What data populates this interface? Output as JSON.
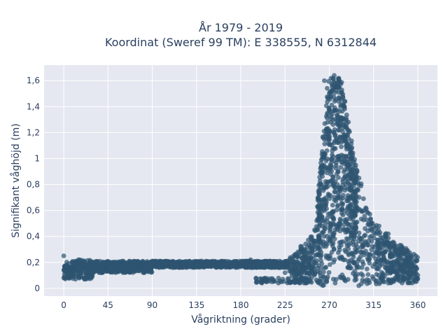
{
  "chart_data": {
    "type": "scatter",
    "title_lines": [
      "År 1979 - 2019",
      "Koordinat (Sweref 99 TM): E 338555, N 6312844"
    ],
    "xlabel": "Vågriktning (grader)",
    "ylabel": "Signifikant våghöjd (m)",
    "xlim": [
      -20,
      380
    ],
    "ylim": [
      -0.06,
      1.72
    ],
    "x_ticks": [
      0,
      45,
      90,
      135,
      180,
      225,
      270,
      315,
      360
    ],
    "y_ticks": [
      0,
      0.2,
      0.4,
      0.6,
      0.8,
      1,
      1.2,
      1.4,
      1.6
    ],
    "y_tick_labels": [
      "0",
      "0,2",
      "0,4",
      "0,6",
      "0,8",
      "1",
      "1,2",
      "1,4",
      "1,6"
    ],
    "grid": true,
    "colors": {
      "marker": "#2e5470",
      "plot_bg": "#e5e8f0",
      "grid": "#ffffff",
      "text": "#2a3f5f"
    },
    "marker_opacity": 0.7,
    "representative_points": [
      [
        0,
        0.08
      ],
      [
        0,
        0.25
      ],
      [
        10,
        0.1
      ],
      [
        15,
        0.22
      ],
      [
        30,
        0.14
      ],
      [
        45,
        0.18
      ],
      [
        60,
        0.2
      ],
      [
        75,
        0.17
      ],
      [
        90,
        0.21
      ],
      [
        100,
        0.2
      ],
      [
        120,
        0.19
      ],
      [
        140,
        0.21
      ],
      [
        150,
        0.17
      ],
      [
        170,
        0.2
      ],
      [
        190,
        0.22
      ],
      [
        200,
        0.05
      ],
      [
        210,
        0.21
      ],
      [
        225,
        0.12
      ],
      [
        235,
        0.25
      ],
      [
        245,
        0.3
      ],
      [
        255,
        0.45
      ],
      [
        262,
        0.8
      ],
      [
        265,
        1.6
      ],
      [
        270,
        1.5
      ],
      [
        275,
        1.64
      ],
      [
        280,
        1.6
      ],
      [
        285,
        1.3
      ],
      [
        290,
        1.1
      ],
      [
        295,
        0.95
      ],
      [
        300,
        0.8
      ],
      [
        305,
        0.6
      ],
      [
        310,
        0.5
      ],
      [
        320,
        0.45
      ],
      [
        330,
        0.42
      ],
      [
        340,
        0.3
      ],
      [
        350,
        0.27
      ],
      [
        358,
        0.25
      ],
      [
        360,
        0.1
      ],
      [
        300,
        0.02
      ],
      [
        330,
        0.04
      ]
    ]
  }
}
